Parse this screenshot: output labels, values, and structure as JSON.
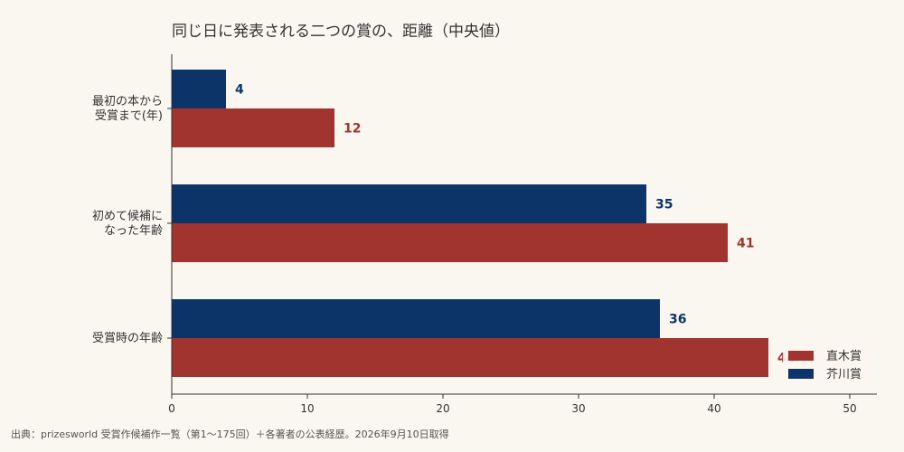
{
  "title": "同じ日に発表される二つの賞の、距離（中央値）",
  "source": "出典：prizesworld 受賞作候補作一覧（第1〜175回）＋各著者の公表経歴。2026年9月10日取得",
  "colors": {
    "naoki": "#a1342e",
    "akutagawa": "#0d3468",
    "background": "#faf6f0"
  },
  "chart_data": {
    "type": "bar",
    "orientation": "horizontal",
    "categories": [
      [
        "最初の本から",
        "受賞まで(年)"
      ],
      [
        "初めて候補に",
        "なった年齢"
      ],
      [
        "受賞時の年齢"
      ]
    ],
    "series": [
      {
        "name": "芥川賞",
        "values": [
          4,
          35,
          36
        ]
      },
      {
        "name": "直木賞",
        "values": [
          12,
          41,
          44
        ]
      }
    ],
    "xlim": [
      0,
      52
    ],
    "xticks": [
      0,
      10,
      20,
      30,
      40,
      50
    ],
    "legend": [
      "直木賞",
      "芥川賞"
    ],
    "legend_placement": "bottom-right",
    "grid": false
  }
}
